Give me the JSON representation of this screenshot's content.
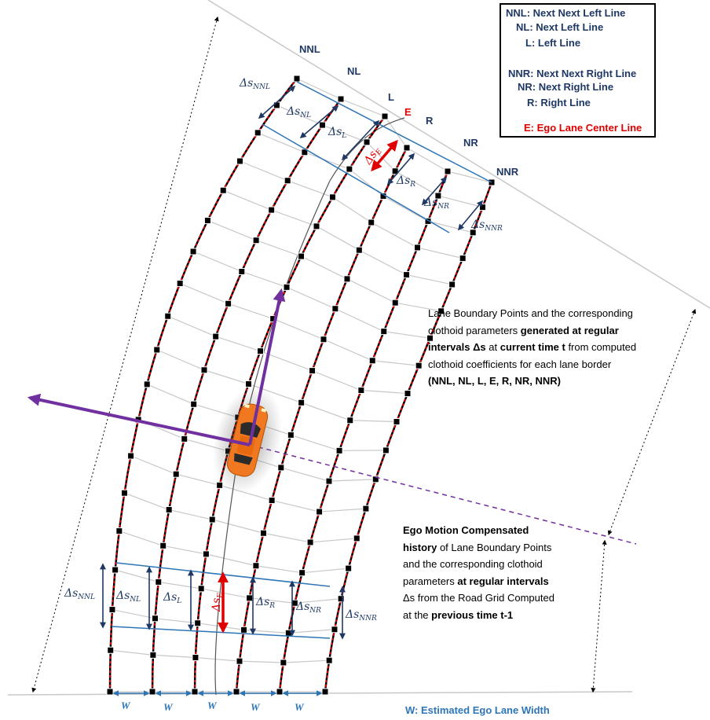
{
  "legend": {
    "nnl": "NNL: Next Next Left Line",
    "nl": "NL: Next Left Line",
    "l": "L: Left Line",
    "nnr": "NNR: Next Next Right Line",
    "nr": "NR: Next Right Line",
    "r": "R: Right Line",
    "e": "E: Ego Lane Center  Line"
  },
  "line_labels": {
    "nnl": "NNL",
    "nl": "NL",
    "l": "L",
    "e": "E",
    "r": "R",
    "nr": "NR",
    "nnr": "NNR"
  },
  "delta_labels": {
    "symbol": "Δs",
    "nnl": "NNL",
    "nl": "NL",
    "l": "L",
    "e": "E",
    "r": "R",
    "nr": "NR",
    "nnr": "NNR"
  },
  "width_label": "W",
  "width_caption": "W: Estimated Ego Lane Width",
  "note_current": {
    "line1": "Lane Boundary Points and the corresponding",
    "line2a": "clothoid parameters ",
    "line2b": "generated at regular",
    "line3a": "intervals Δs",
    "line3b": " at  ",
    "line3c": "current time t",
    "line3d": " from computed",
    "line4": "clothoid coefficients for each lane border",
    "line5": "(NNL, NL, L, E, R, NR, NNR)"
  },
  "note_history": {
    "line1": "Ego Motion Compensated",
    "line2a": "history",
    "line2b": " of Lane Boundary Points",
    "line3": "and the corresponding clothoid",
    "line4a": "parameters  ",
    "line4b": "at regular intervals",
    "line5": "Δs from the Road Grid Computed",
    "line6a": "at the ",
    "line6b": "previous time t-1"
  },
  "colors": {
    "lane_line": "#000000",
    "lane_dash": "#e00000",
    "point_fill": "#000000",
    "grid_line": "#c8c8c8",
    "blue_line": "#2e75b6",
    "navy_arrow": "#1f3864",
    "red_arrow": "#e00000",
    "purple": "#7030a0",
    "car": "#f07820"
  }
}
